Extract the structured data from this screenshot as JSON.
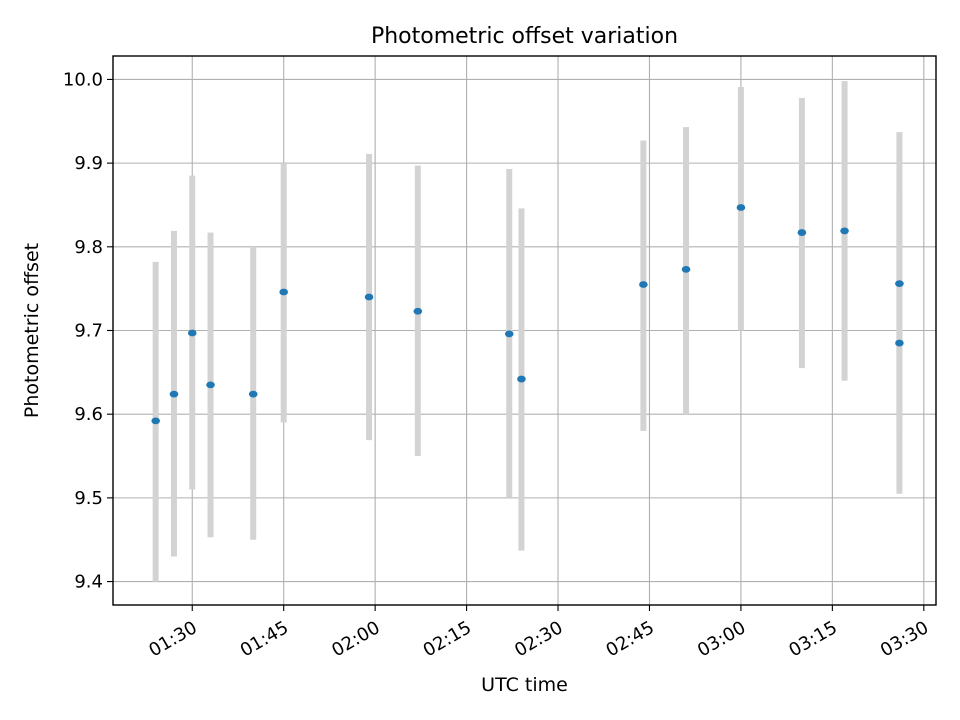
{
  "chart_data": {
    "type": "scatter",
    "title": "Photometric offset variation",
    "xlabel": "UTC time",
    "ylabel": "Photometric offset",
    "x_ticks": [
      "01:30",
      "01:45",
      "02:00",
      "02:15",
      "02:30",
      "02:45",
      "03:00",
      "03:15",
      "03:30"
    ],
    "y_ticks": [
      "9.4",
      "9.5",
      "9.6",
      "9.7",
      "9.8",
      "9.9",
      "10.0"
    ],
    "xlim": [
      "01:17",
      "03:32"
    ],
    "ylim": [
      9.372,
      10.028
    ],
    "grid": true,
    "series": [
      {
        "marker_color": "#1f77b4",
        "errorbar_color": "#d3d3d3",
        "points": [
          {
            "time": "01:24",
            "y": 9.592,
            "low": 9.4,
            "high": 9.782
          },
          {
            "time": "01:27",
            "y": 9.624,
            "low": 9.43,
            "high": 9.819
          },
          {
            "time": "01:30",
            "y": 9.697,
            "low": 9.51,
            "high": 9.885
          },
          {
            "time": "01:33",
            "y": 9.635,
            "low": 9.453,
            "high": 9.817
          },
          {
            "time": "01:40",
            "y": 9.624,
            "low": 9.45,
            "high": 9.8
          },
          {
            "time": "01:45",
            "y": 9.746,
            "low": 9.59,
            "high": 9.9
          },
          {
            "time": "01:59",
            "y": 9.74,
            "low": 9.569,
            "high": 9.911
          },
          {
            "time": "02:07",
            "y": 9.723,
            "low": 9.55,
            "high": 9.897
          },
          {
            "time": "02:22",
            "y": 9.696,
            "low": 9.5,
            "high": 9.893
          },
          {
            "time": "02:24",
            "y": 9.642,
            "low": 9.437,
            "high": 9.846
          },
          {
            "time": "02:44",
            "y": 9.755,
            "low": 9.58,
            "high": 9.927
          },
          {
            "time": "02:51",
            "y": 9.773,
            "low": 9.6,
            "high": 9.943
          },
          {
            "time": "03:00",
            "y": 9.847,
            "low": 9.7,
            "high": 9.991
          },
          {
            "time": "03:10",
            "y": 9.817,
            "low": 9.655,
            "high": 9.978
          },
          {
            "time": "03:17",
            "y": 9.819,
            "low": 9.64,
            "high": 9.998
          },
          {
            "time": "03:26",
            "y": 9.756,
            "low": 9.575,
            "high": 9.937
          },
          {
            "time": "03:26",
            "y": 9.685,
            "low": 9.505,
            "high": 9.864
          }
        ]
      }
    ]
  }
}
